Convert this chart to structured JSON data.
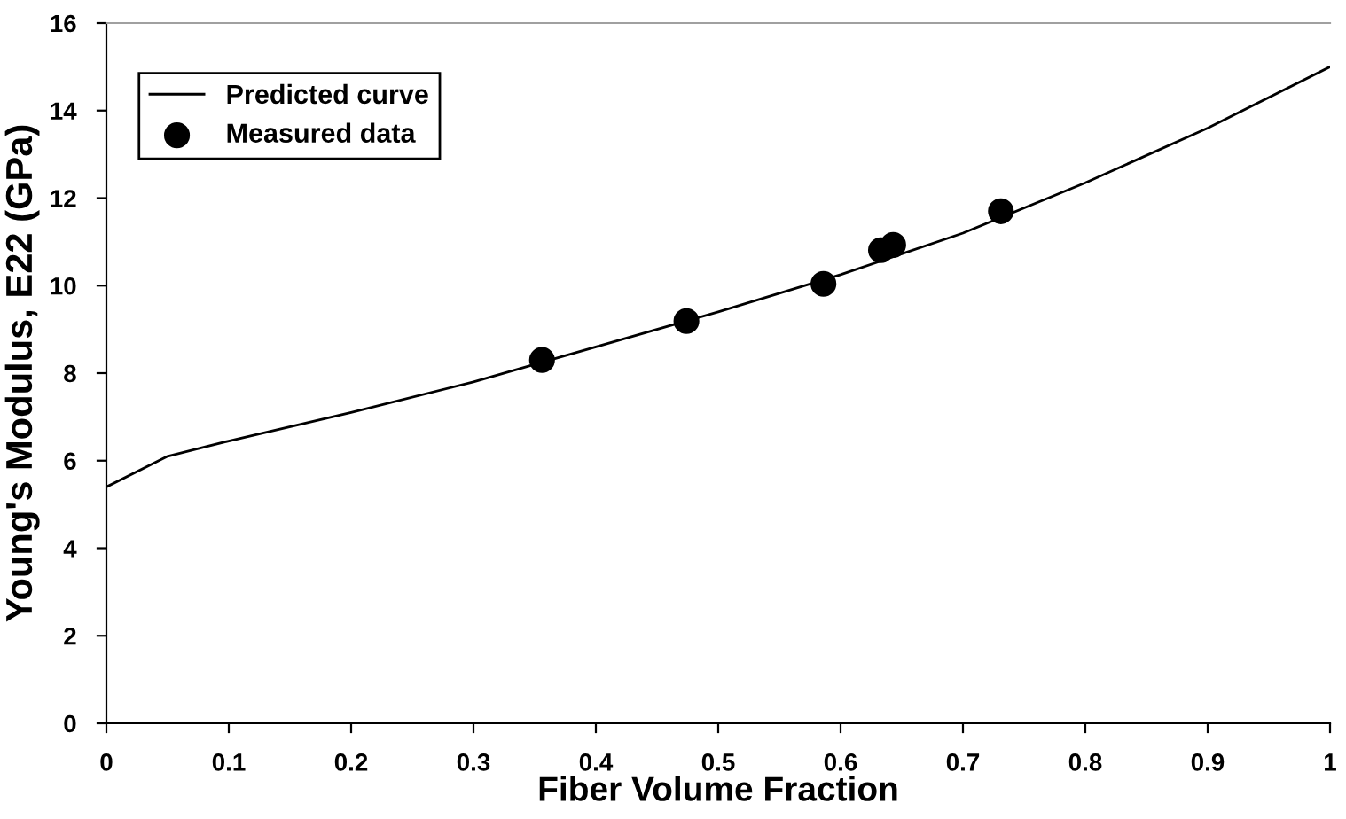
{
  "chart_data": {
    "type": "line",
    "xlabel": "Fiber Volume Fraction",
    "ylabel": "Young's Modulus, E22 (GPa)",
    "xlim": [
      0,
      1
    ],
    "ylim": [
      0,
      16
    ],
    "xticks": [
      0,
      0.1,
      0.2,
      0.3,
      0.4,
      0.5,
      0.6,
      0.7,
      0.8,
      0.9,
      1
    ],
    "yticks": [
      0,
      2,
      4,
      6,
      8,
      10,
      12,
      14,
      16
    ],
    "grid": false,
    "legend": "top left",
    "series": [
      {
        "name": "Predicted curve",
        "color": "#000000",
        "marker": "none",
        "x": [
          0,
          0.05,
          0.1,
          0.2,
          0.3,
          0.4,
          0.5,
          0.6,
          0.7,
          0.8,
          0.9,
          1.0
        ],
        "values": [
          5.4,
          6.1,
          6.45,
          7.1,
          7.8,
          8.6,
          9.4,
          10.25,
          11.2,
          12.35,
          13.6,
          15.0
        ]
      },
      {
        "name": "Measured data",
        "type": "scatter",
        "color": "#000000",
        "marker": "circle",
        "x": [
          0.356,
          0.474,
          0.586,
          0.633,
          0.643,
          0.731
        ],
        "values": [
          8.3,
          9.19,
          10.04,
          10.81,
          10.93,
          11.7
        ]
      }
    ]
  }
}
